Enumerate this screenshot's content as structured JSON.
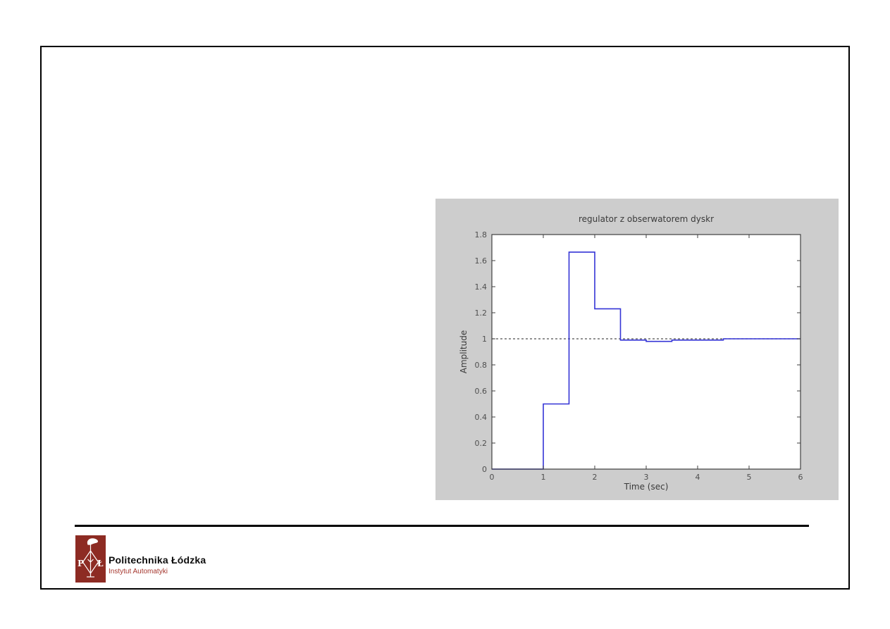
{
  "page": {
    "background": "#ffffff",
    "slide_border_color": "#000000"
  },
  "figure": {
    "panel_background": "#cdcdcd",
    "plot_background": "#ffffff",
    "axis_color": "#3f3f3f"
  },
  "chart_data": {
    "type": "line",
    "subtype": "stairs-step-response",
    "title": "regulator z obserwatorem dyskr",
    "xlabel": "Time (sec)",
    "ylabel": "Amplitude",
    "xlim": [
      0,
      6
    ],
    "ylim": [
      0,
      1.8
    ],
    "xticks": [
      "0",
      "1",
      "2",
      "3",
      "4",
      "5",
      "6"
    ],
    "yticks": [
      "0",
      "0.2",
      "0.4",
      "0.6",
      "0.8",
      "1",
      "1.2",
      "1.4",
      "1.6",
      "1.8"
    ],
    "grid": false,
    "legend_position": "none",
    "series": [
      {
        "name": "steady-state-reference",
        "type": "dashed-line",
        "color": "#4f4f4f",
        "x": [
          0,
          6
        ],
        "y": [
          1,
          1
        ]
      },
      {
        "name": "step-response",
        "type": "stairs",
        "color": "#3434d6",
        "x": [
          0,
          1,
          1.5,
          2,
          2.5,
          3,
          3.5,
          4.5,
          6
        ],
        "y": [
          0,
          0.5,
          1.665,
          1.23,
          0.99,
          0.98,
          0.99,
          1.0,
          1.0
        ]
      }
    ]
  },
  "footer": {
    "org_name": "Politechnika Łódzka",
    "org_unit": "Instytut Automatyki",
    "logo": {
      "background": "#8d2b23",
      "letter_left": "P",
      "letter_right": "Ł"
    }
  }
}
